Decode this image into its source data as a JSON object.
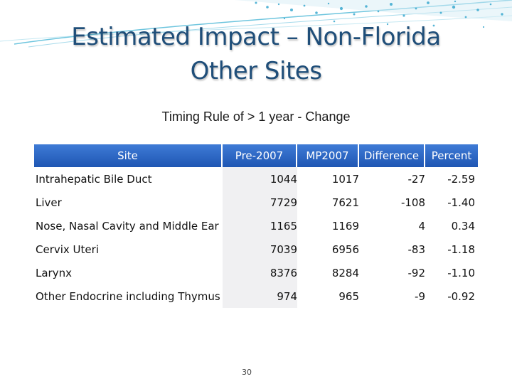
{
  "slide": {
    "title": "Estimated Impact – Non-Florida Other Sites",
    "subtitle": "Timing Rule of > 1 year - Change",
    "page_number": "30"
  },
  "table": {
    "headers": [
      "Site",
      "Pre-2007",
      "MP2007",
      "Difference",
      "Percent"
    ],
    "rows": [
      [
        "Intrahepatic Bile Duct",
        "1044",
        "1017",
        "-27",
        "-2.59"
      ],
      [
        "Liver",
        "7729",
        "7621",
        "-108",
        "-1.40"
      ],
      [
        "Nose, Nasal Cavity and Middle Ear",
        "1165",
        "1169",
        "4",
        "0.34"
      ],
      [
        "Cervix Uteri",
        "7039",
        "6956",
        "-83",
        "-1.18"
      ],
      [
        "Larynx",
        "8376",
        "8284",
        "-92",
        "-1.10"
      ],
      [
        "Other Endocrine including Thymus",
        "974",
        "965",
        "-9",
        "-0.92"
      ]
    ]
  },
  "colors": {
    "title": "#1f4e79",
    "header_bg": "#2e67c4",
    "shaded_cell": "#f0f0f2",
    "swoosh": "#4ab6d6"
  }
}
